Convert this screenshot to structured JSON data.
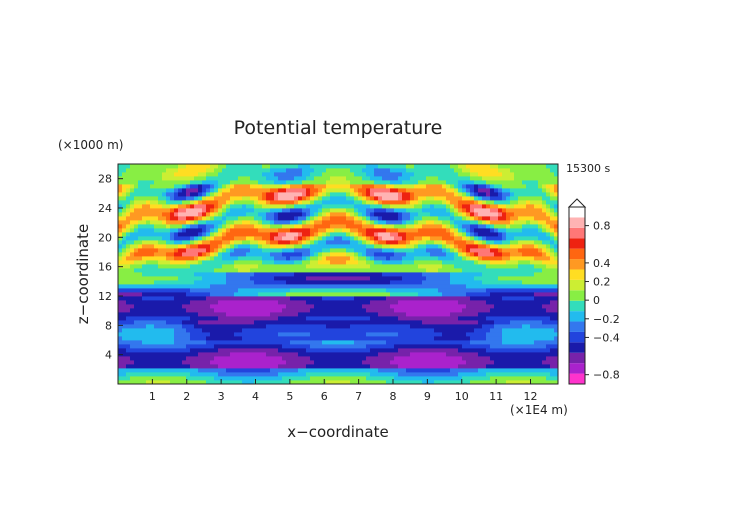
{
  "chart_data": {
    "type": "heatmap",
    "title": "Potential temperature",
    "xlabel": "x−coordinate",
    "ylabel": "z−coordinate",
    "x_unit": "(×1E4 m)",
    "y_unit": "(×1000 m)",
    "time_label": "15300 s",
    "xlim": [
      0,
      12.8
    ],
    "ylim": [
      0,
      30
    ],
    "x_ticks": [
      "1",
      "2",
      "3",
      "4",
      "5",
      "6",
      "7",
      "8",
      "9",
      "10",
      "11",
      "12"
    ],
    "y_ticks": [
      "4",
      "8",
      "12",
      "16",
      "20",
      "24",
      "28"
    ],
    "colorbar": {
      "tick_labels": [
        "0.8",
        "0.4",
        "0.2",
        "0",
        "−0.2",
        "−0.4",
        "−0.8"
      ],
      "tick_values": [
        0.8,
        0.4,
        0.2,
        0.0,
        -0.2,
        -0.4,
        -0.8
      ],
      "range": [
        -0.9,
        1.0
      ],
      "colors": [
        "#ff33cc",
        "#aa22cc",
        "#7722aa",
        "#1a1aaa",
        "#2244dd",
        "#3377ee",
        "#22bbee",
        "#33ddbb",
        "#88ee44",
        "#ccee33",
        "#ffdd22",
        "#ff9922",
        "#ff6611",
        "#ee2211",
        "#ff7777",
        "#ffb3b3",
        "#ffffff"
      ]
    },
    "grid": false
  }
}
